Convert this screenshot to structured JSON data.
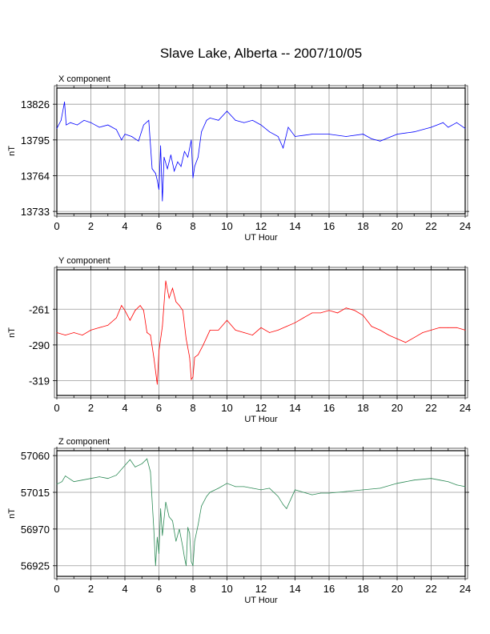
{
  "title": "Slave Lake, Alberta -- 2007/10/05",
  "chart_data": [
    {
      "type": "line",
      "panel_label": "X component",
      "xlabel": "UT Hour",
      "ylabel": "nT",
      "xlim": [
        0,
        24
      ],
      "ylim": [
        13731,
        13840
      ],
      "xticks": [
        0,
        2,
        4,
        6,
        8,
        10,
        12,
        14,
        16,
        18,
        20,
        22,
        24
      ],
      "yticks": [
        13733,
        13764,
        13795,
        13826
      ],
      "grid": true,
      "color": "#0000ff",
      "x": [
        0,
        0.25,
        0.45,
        0.55,
        0.8,
        1.2,
        1.6,
        2.0,
        2.5,
        3.0,
        3.5,
        3.8,
        4.0,
        4.4,
        4.8,
        5.1,
        5.4,
        5.6,
        5.8,
        5.9,
        6.0,
        6.1,
        6.2,
        6.3,
        6.5,
        6.7,
        6.9,
        7.1,
        7.3,
        7.5,
        7.7,
        7.9,
        8.0,
        8.1,
        8.3,
        8.5,
        8.8,
        9.0,
        9.5,
        10.0,
        10.5,
        11.0,
        11.5,
        12.0,
        12.5,
        13.0,
        13.3,
        13.6,
        14.0,
        15.0,
        16.0,
        17.0,
        18.0,
        18.5,
        19.0,
        20.0,
        21.0,
        22.0,
        22.7,
        23.0,
        23.5,
        24.0
      ],
      "values": [
        13805,
        13812,
        13828,
        13808,
        13810,
        13808,
        13812,
        13810,
        13806,
        13808,
        13804,
        13795,
        13800,
        13798,
        13794,
        13808,
        13812,
        13770,
        13766,
        13760,
        13752,
        13790,
        13742,
        13780,
        13770,
        13782,
        13768,
        13776,
        13772,
        13785,
        13780,
        13795,
        13762,
        13772,
        13780,
        13802,
        13812,
        13814,
        13812,
        13820,
        13812,
        13810,
        13812,
        13808,
        13802,
        13798,
        13788,
        13806,
        13798,
        13800,
        13800,
        13798,
        13800,
        13796,
        13794,
        13800,
        13802,
        13806,
        13810,
        13806,
        13810,
        13805
      ]
    },
    {
      "type": "line",
      "panel_label": "Y component",
      "xlabel": "UT Hour",
      "ylabel": "nT",
      "xlim": [
        0,
        24
      ],
      "ylim": [
        -331,
        -229
      ],
      "xticks": [
        0,
        2,
        4,
        6,
        8,
        10,
        12,
        14,
        16,
        18,
        20,
        22,
        24
      ],
      "yticks": [
        -261,
        -290,
        -319
      ],
      "grid": true,
      "color": "#ff0000",
      "x": [
        0,
        0.5,
        1.0,
        1.5,
        2.0,
        2.5,
        3.0,
        3.5,
        3.8,
        4.0,
        4.3,
        4.6,
        4.9,
        5.1,
        5.3,
        5.5,
        5.7,
        5.9,
        6.0,
        6.2,
        6.4,
        6.6,
        6.8,
        7.0,
        7.2,
        7.4,
        7.6,
        7.8,
        7.9,
        8.0,
        8.1,
        8.3,
        8.6,
        9.0,
        9.5,
        10.0,
        10.5,
        11.0,
        11.5,
        12.0,
        12.5,
        13.0,
        13.5,
        14.0,
        14.5,
        15.0,
        15.5,
        16.0,
        16.5,
        17.0,
        17.5,
        18.0,
        18.5,
        19.0,
        19.5,
        20.0,
        20.5,
        21.0,
        21.5,
        22.0,
        22.5,
        23.0,
        23.5,
        24.0
      ],
      "values": [
        -280,
        -282,
        -280,
        -282,
        -278,
        -276,
        -274,
        -268,
        -258,
        -262,
        -270,
        -262,
        -258,
        -262,
        -280,
        -282,
        -300,
        -322,
        -295,
        -275,
        -238,
        -252,
        -244,
        -255,
        -258,
        -262,
        -285,
        -300,
        -318,
        -316,
        -300,
        -298,
        -290,
        -278,
        -278,
        -270,
        -278,
        -280,
        -282,
        -276,
        -280,
        -278,
        -275,
        -272,
        -268,
        -264,
        -264,
        -262,
        -264,
        -260,
        -262,
        -266,
        -275,
        -278,
        -282,
        -285,
        -288,
        -284,
        -280,
        -278,
        -276,
        -276,
        -276,
        -278
      ]
    },
    {
      "type": "line",
      "panel_label": "Z component",
      "xlabel": "UT Hour",
      "ylabel": "nT",
      "xlim": [
        0,
        24
      ],
      "ylim": [
        56912,
        57066
      ],
      "xticks": [
        0,
        2,
        4,
        6,
        8,
        10,
        12,
        14,
        16,
        18,
        20,
        22,
        24
      ],
      "yticks": [
        57060,
        57015,
        56970,
        56925
      ],
      "grid": true,
      "color": "#2e8b57",
      "x": [
        0,
        0.3,
        0.5,
        1.0,
        1.5,
        2.0,
        2.5,
        3.0,
        3.5,
        4.0,
        4.3,
        4.6,
        5.0,
        5.3,
        5.5,
        5.7,
        5.8,
        5.9,
        6.0,
        6.1,
        6.2,
        6.4,
        6.6,
        6.8,
        7.0,
        7.2,
        7.4,
        7.5,
        7.6,
        7.7,
        7.8,
        7.9,
        8.0,
        8.1,
        8.3,
        8.5,
        8.8,
        9.0,
        9.5,
        10.0,
        10.5,
        11.0,
        11.5,
        12.0,
        12.5,
        13.0,
        13.3,
        13.5,
        14.0,
        14.5,
        15.0,
        15.5,
        16.0,
        17.0,
        18.0,
        19.0,
        20.0,
        21.0,
        22.0,
        22.5,
        23.0,
        23.5,
        24.0
      ],
      "values": [
        57025,
        57028,
        57035,
        57028,
        57030,
        57032,
        57034,
        57032,
        57036,
        57048,
        57055,
        57046,
        57050,
        57056,
        57040,
        56970,
        56925,
        56960,
        56940,
        56995,
        56962,
        57003,
        56985,
        56980,
        56955,
        56970,
        56948,
        56935,
        56925,
        56972,
        56965,
        56930,
        56925,
        56955,
        56975,
        56998,
        57010,
        57015,
        57020,
        57026,
        57022,
        57022,
        57020,
        57018,
        57020,
        57010,
        57000,
        56995,
        57018,
        57015,
        57012,
        57014,
        57014,
        57016,
        57018,
        57020,
        57026,
        57030,
        57032,
        57030,
        57028,
        57024,
        57022
      ]
    }
  ]
}
